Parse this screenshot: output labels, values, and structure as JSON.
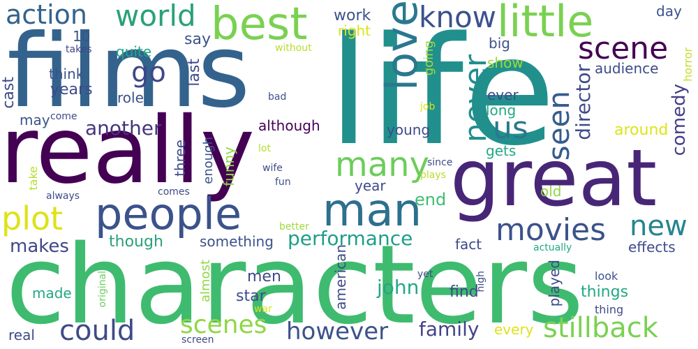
{
  "words": [
    {
      "text": "characters",
      "color": "#3fbb6f"
    },
    {
      "text": "life",
      "color": "#21908d"
    },
    {
      "text": "films",
      "color": "#33638d"
    },
    {
      "text": "really",
      "color": "#440154"
    },
    {
      "text": "great",
      "color": "#482677"
    },
    {
      "text": "best",
      "color": "#7ad151"
    },
    {
      "text": "little",
      "color": "#7ad151"
    },
    {
      "text": "love",
      "color": "#2a788e"
    },
    {
      "text": "people",
      "color": "#3b528b"
    },
    {
      "text": "man",
      "color": "#2d708e"
    },
    {
      "text": "world",
      "color": "#2aa07a"
    },
    {
      "text": "action",
      "color": "#33638d"
    },
    {
      "text": "know",
      "color": "#3b528b"
    },
    {
      "text": "scene",
      "color": "#440154"
    },
    {
      "text": "never",
      "color": "#228d8d"
    },
    {
      "text": "many",
      "color": "#6ccd5a"
    },
    {
      "text": "us",
      "color": "#2a788e"
    },
    {
      "text": "seen",
      "color": "#365c8d"
    },
    {
      "text": "director",
      "color": "#3e4a89"
    },
    {
      "text": "comedy",
      "color": "#433e85"
    },
    {
      "text": "go",
      "color": "#3f4788"
    },
    {
      "text": "another",
      "color": "#463480"
    },
    {
      "text": "plot",
      "color": "#dde318"
    },
    {
      "text": "movies",
      "color": "#3b528b"
    },
    {
      "text": "new",
      "color": "#25858e"
    },
    {
      "text": "could",
      "color": "#3e4a89"
    },
    {
      "text": "scenes",
      "color": "#8fd744"
    },
    {
      "text": "however",
      "color": "#3b528b"
    },
    {
      "text": "family",
      "color": "#414487"
    },
    {
      "text": "stillback",
      "color": "#7ad151"
    },
    {
      "text": "performance",
      "color": "#1f9e89"
    },
    {
      "text": "makes",
      "color": "#3f4788"
    },
    {
      "text": "john",
      "color": "#22a884"
    },
    {
      "text": "work",
      "color": "#3b528b"
    },
    {
      "text": "right",
      "color": "#dde318"
    },
    {
      "text": "day",
      "color": "#3b528b"
    },
    {
      "text": "10",
      "color": "#3b528b"
    },
    {
      "text": "say",
      "color": "#3b528b"
    },
    {
      "text": "takes",
      "color": "#414487"
    },
    {
      "text": "without",
      "color": "#b5de2b"
    },
    {
      "text": "going",
      "color": "#9fda3a"
    },
    {
      "text": "big",
      "color": "#3b528b"
    },
    {
      "text": "show",
      "color": "#9fda3a"
    },
    {
      "text": "quite",
      "color": "#21a685"
    },
    {
      "text": "horror",
      "color": "#c2df23"
    },
    {
      "text": "think",
      "color": "#3b528b"
    },
    {
      "text": "last",
      "color": "#3e4a89"
    },
    {
      "text": "audience",
      "color": "#3e4a89"
    },
    {
      "text": "years",
      "color": "#3e4a89"
    },
    {
      "text": "role",
      "color": "#3b528b"
    },
    {
      "text": "bad",
      "color": "#3b528b"
    },
    {
      "text": "ever",
      "color": "#3e4a89"
    },
    {
      "text": "cast",
      "color": "#3e4a89"
    },
    {
      "text": "long",
      "color": "#22a884"
    },
    {
      "text": "may",
      "color": "#3b528b"
    },
    {
      "text": "come",
      "color": "#3e4a89"
    },
    {
      "text": "job",
      "color": "#d8e219"
    },
    {
      "text": "although",
      "color": "#440154"
    },
    {
      "text": "young",
      "color": "#3e4a89"
    },
    {
      "text": "around",
      "color": "#dde318"
    },
    {
      "text": "gets",
      "color": "#22a884"
    },
    {
      "text": "three",
      "color": "#3e4a89"
    },
    {
      "text": "enough",
      "color": "#3b528b"
    },
    {
      "text": "funny",
      "color": "#8fd744"
    },
    {
      "text": "lot",
      "color": "#b5de2b"
    },
    {
      "text": "take",
      "color": "#b5de2b"
    },
    {
      "text": "wife",
      "color": "#3e4a89"
    },
    {
      "text": "since",
      "color": "#3e4a89"
    },
    {
      "text": "plays",
      "color": "#b5de2b"
    },
    {
      "text": "fun",
      "color": "#3b528b"
    },
    {
      "text": "year",
      "color": "#3e4a89"
    },
    {
      "text": "always",
      "color": "#3e4a89"
    },
    {
      "text": "comes",
      "color": "#3e4a89"
    },
    {
      "text": "old",
      "color": "#8fd744"
    },
    {
      "text": "end",
      "color": "#3fbc73"
    },
    {
      "text": "better",
      "color": "#9fda3a"
    },
    {
      "text": "though",
      "color": "#2aa07a"
    },
    {
      "text": "something",
      "color": "#3b528b"
    },
    {
      "text": "fact",
      "color": "#3e4a89"
    },
    {
      "text": "effects",
      "color": "#3e4a89"
    },
    {
      "text": "actually",
      "color": "#22a884"
    },
    {
      "text": "american",
      "color": "#3e4a89"
    },
    {
      "text": "almost",
      "color": "#8fd744"
    },
    {
      "text": "played",
      "color": "#3e4a89"
    },
    {
      "text": "high",
      "color": "#3e4a89"
    },
    {
      "text": "yet",
      "color": "#3e4a89"
    },
    {
      "text": "look",
      "color": "#3b528b"
    },
    {
      "text": "original",
      "color": "#6ccd5a"
    },
    {
      "text": "men",
      "color": "#3e4a89"
    },
    {
      "text": "things",
      "color": "#22a884"
    },
    {
      "text": "made",
      "color": "#22a884"
    },
    {
      "text": "star",
      "color": "#3e4a89"
    },
    {
      "text": "find",
      "color": "#3e4a89"
    },
    {
      "text": "war",
      "color": "#dde318"
    },
    {
      "text": "thing",
      "color": "#3e4a89"
    },
    {
      "text": "real",
      "color": "#3e4a89"
    },
    {
      "text": "every",
      "color": "#dde318"
    },
    {
      "text": "screen",
      "color": "#3e4a89"
    }
  ]
}
